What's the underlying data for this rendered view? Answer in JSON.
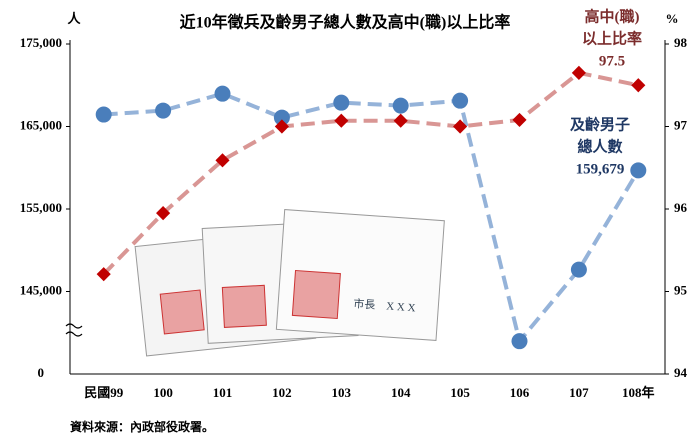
{
  "chart_data": {
    "type": "line",
    "title": "近10年徵兵及齡男子總人數及高中(職)以上比率",
    "y_unit": "人",
    "y2_unit": "%",
    "categories": [
      "民國99",
      "100",
      "101",
      "102",
      "103",
      "104",
      "105",
      "106",
      "107",
      "108年"
    ],
    "ylim": [
      135000,
      175000
    ],
    "yticks": [
      {
        "value": 145000,
        "label": "145,000"
      },
      {
        "value": 155000,
        "label": "155,000"
      },
      {
        "value": 165000,
        "label": "165,000"
      },
      {
        "value": 175000,
        "label": "175,000"
      }
    ],
    "y_break_label": "0",
    "y2lim": [
      94,
      98
    ],
    "y2ticks": [
      94,
      95,
      96,
      97,
      98
    ],
    "series": [
      {
        "label_lines": [
          "及齡男子",
          "總人數"
        ],
        "color": "#4a7ebb",
        "line_color": "#95b3d9",
        "values": [
          166450,
          166930,
          168980,
          166080,
          167890,
          167530,
          168130,
          138980,
          147650,
          159679
        ],
        "value_labels": [
          null,
          null,
          null,
          null,
          null,
          null,
          null,
          null,
          null,
          "159,679"
        ]
      },
      {
        "label_lines": [
          "高中(職)",
          "以上比率"
        ],
        "color": "#c00000",
        "line_color": "#d99694",
        "axis": "y2",
        "values": [
          95.21,
          95.95,
          96.59,
          97.0,
          97.07,
          97.07,
          97.0,
          97.08,
          97.65,
          97.5
        ],
        "value_labels": [
          null,
          null,
          null,
          null,
          null,
          null,
          null,
          null,
          null,
          "97.5"
        ]
      }
    ],
    "source": "資料來源：內政部役政署。",
    "card_text": "市長　X X X"
  }
}
